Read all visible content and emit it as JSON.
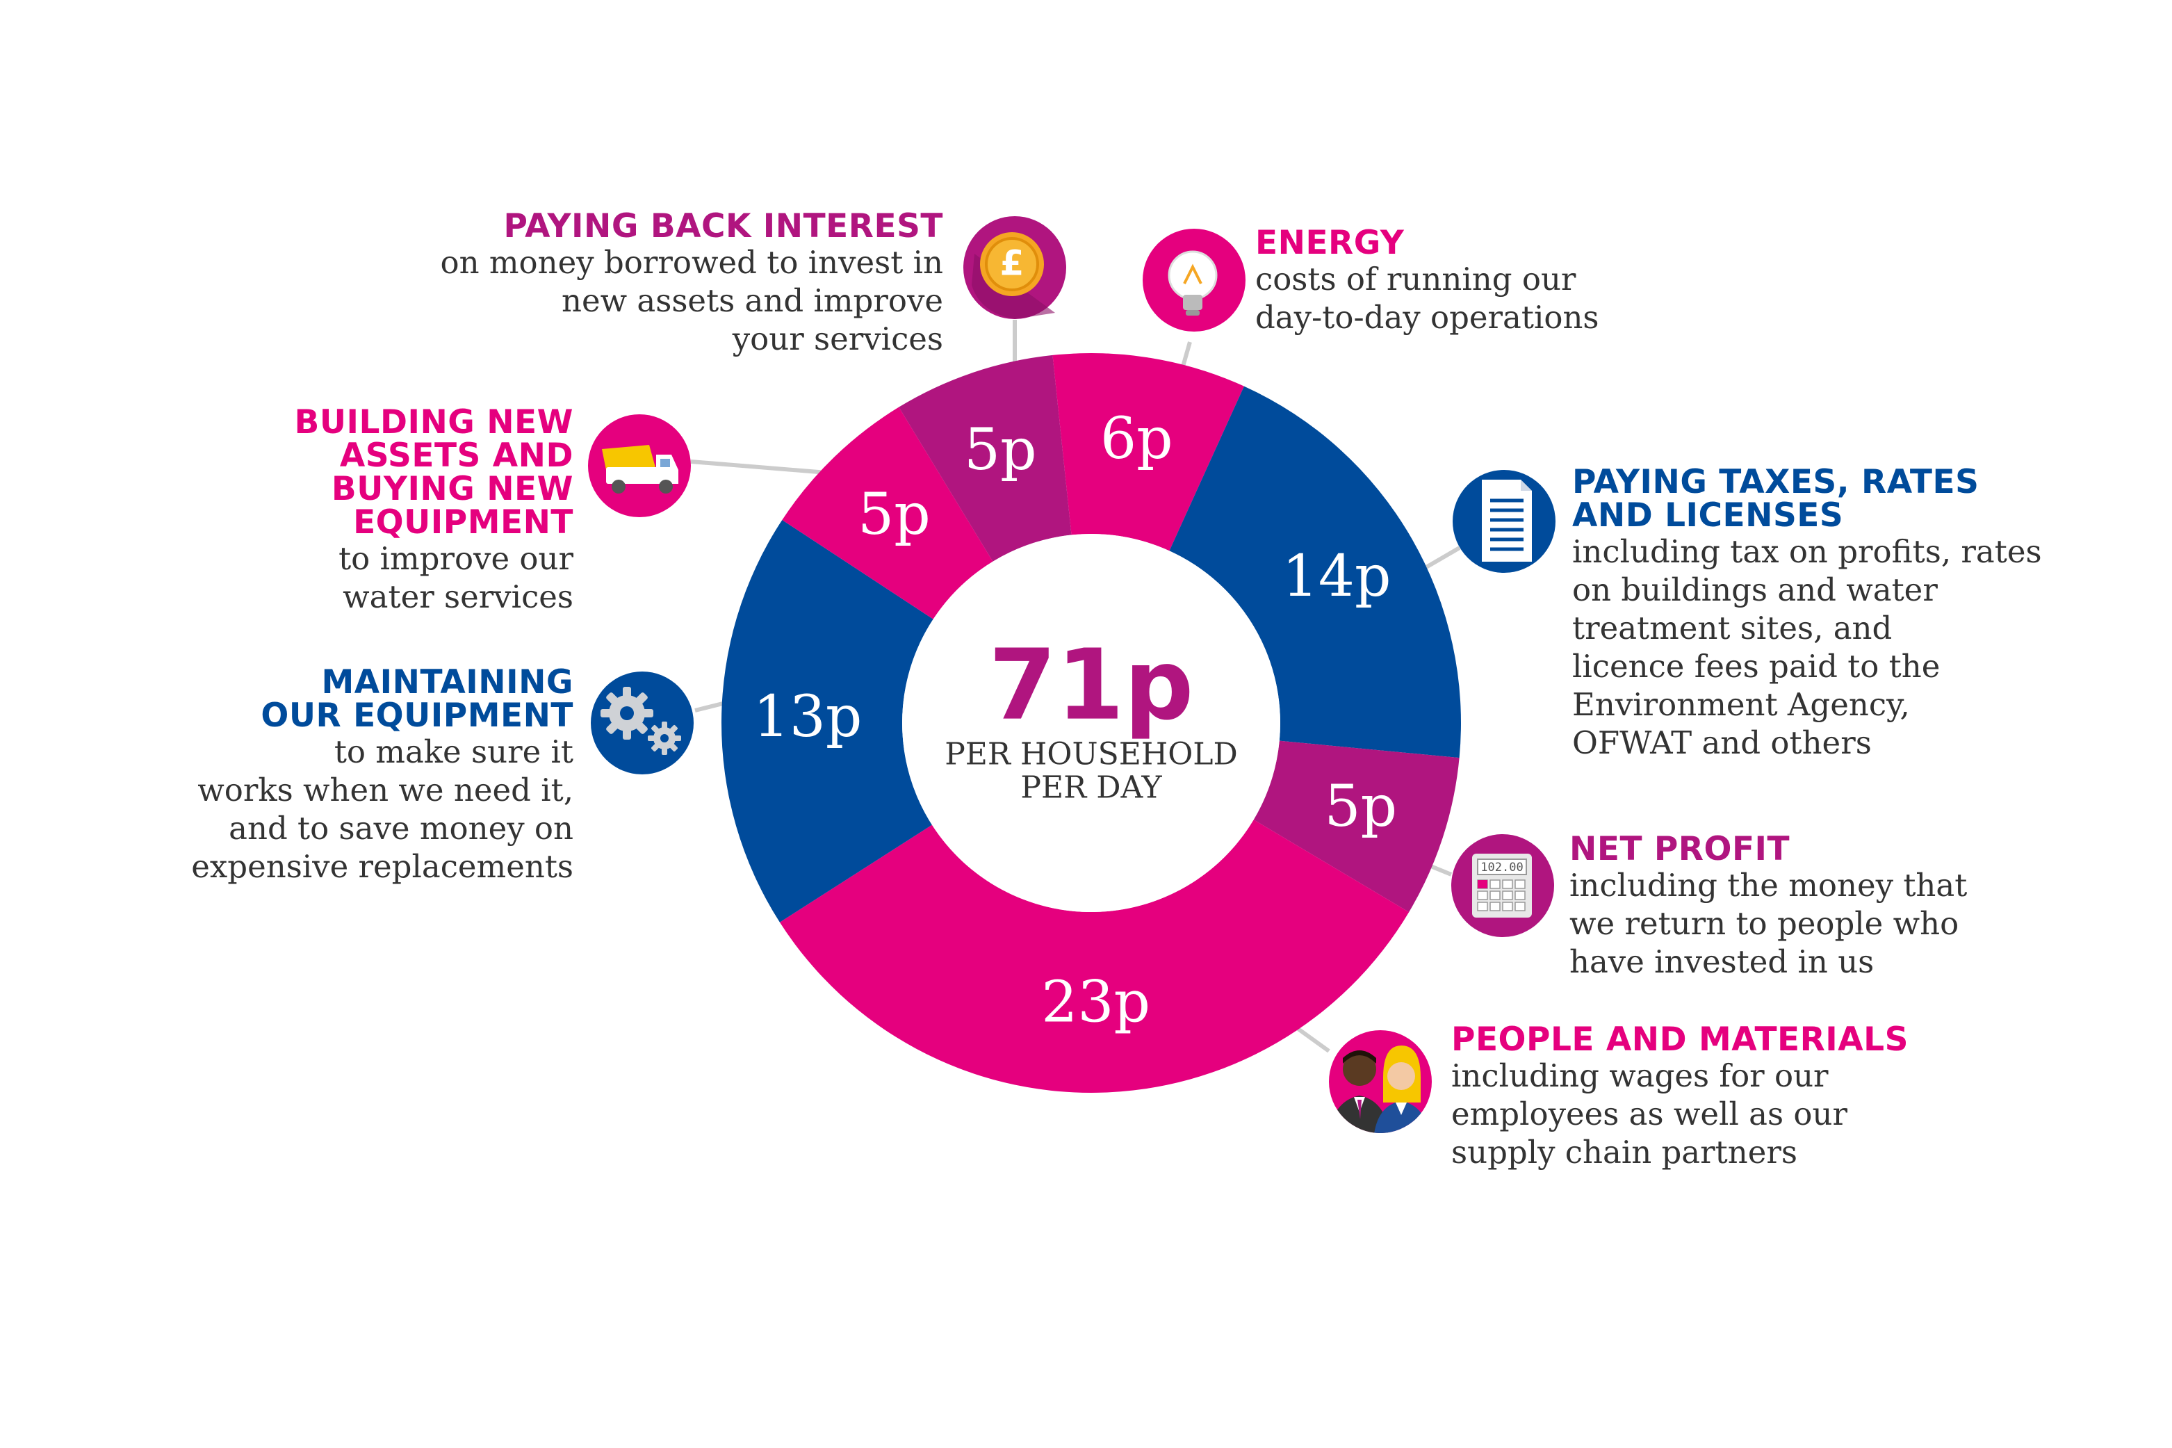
{
  "colors": {
    "magenta": "#E5007E",
    "purple": "#B0157F",
    "blue": "#004B9B",
    "connector": "#CCCCCC"
  },
  "center": {
    "total": "71p",
    "line1": "PER HOUSEHOLD",
    "line2": "PER DAY"
  },
  "chart_data": {
    "type": "pie",
    "total": 71,
    "unit": "p",
    "slices": [
      {
        "value": 6,
        "label": "6p",
        "category": "ENERGY",
        "color": "#E5007E"
      },
      {
        "value": 14,
        "label": "14p",
        "category": "PAYING TAXES, RATES AND LICENSES",
        "color": "#004B9B"
      },
      {
        "value": 5,
        "label": "5p",
        "category": "NET PROFIT",
        "color": "#B0157F"
      },
      {
        "value": 23,
        "label": "23p",
        "category": "PEOPLE AND MATERIALS",
        "color": "#E5007E"
      },
      {
        "value": 13,
        "label": "13p",
        "category": "MAINTAINING OUR EQUIPMENT",
        "color": "#004B9B"
      },
      {
        "value": 5,
        "label": "5p",
        "category": "BUILDING NEW ASSETS AND BUYING NEW EQUIPMENT",
        "color": "#E5007E"
      },
      {
        "value": 5,
        "label": "5p",
        "category": "PAYING BACK INTEREST",
        "color": "#B0157F"
      }
    ]
  },
  "categories": {
    "interest": {
      "title": "PAYING BACK INTEREST",
      "desc": "on money borrowed to invest in\nnew assets and improve\nyour services",
      "icon": "pound-coin-icon"
    },
    "energy": {
      "title": "ENERGY",
      "desc": "costs of running our\nday-to-day operations",
      "icon": "lightbulb-icon"
    },
    "building": {
      "title": "BUILDING NEW\nASSETS AND\nBUYING NEW\nEQUIPMENT",
      "desc": "to improve our\nwater services",
      "icon": "dump-truck-icon"
    },
    "taxes": {
      "title": "PAYING TAXES, RATES\nAND LICENSES",
      "desc": "including tax on profits, rates\non buildings and water\ntreatment sites, and\nlicence fees paid to the\nEnvironment Agency,\nOFWAT and others",
      "icon": "document-icon"
    },
    "maintaining": {
      "title": "MAINTAINING\nOUR EQUIPMENT",
      "desc": "to make sure it\nworks when we need it,\nand to save money on\nexpensive replacements",
      "icon": "gears-icon"
    },
    "profit": {
      "title": "NET PROFIT",
      "desc": "including the money that\nwe return to people who\nhave invested in us",
      "icon": "calculator-icon",
      "display": "102.00"
    },
    "people": {
      "title": "PEOPLE AND MATERIALS",
      "desc": "including wages for our\nemployees as well as our\nsupply chain partners",
      "icon": "people-icon"
    }
  }
}
